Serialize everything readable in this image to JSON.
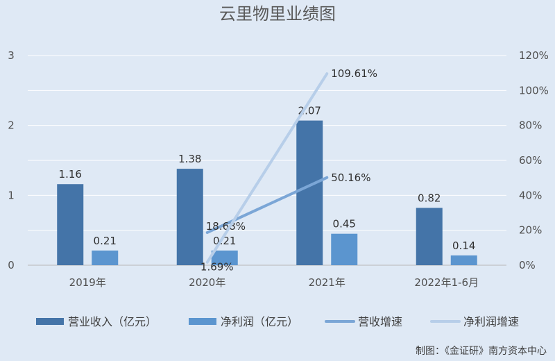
{
  "chart_data": {
    "type": "bar",
    "title": "云里物里业绩图",
    "categories": [
      "2019年",
      "2020年",
      "2021年",
      "2022年1-6月"
    ],
    "bar_series": [
      {
        "name": "营业收入（亿元）",
        "values": [
          1.16,
          1.38,
          2.07,
          0.82
        ],
        "labels": [
          "1.16",
          "1.38",
          "2.07",
          "0.82"
        ],
        "color": "#4474a8"
      },
      {
        "name": "净利润（亿元）",
        "values": [
          0.21,
          0.21,
          0.45,
          0.14
        ],
        "labels": [
          "0.21",
          "0.21",
          "0.45",
          "0.14"
        ],
        "color": "#5b95cf"
      }
    ],
    "line_series": [
      {
        "name": "营收增速",
        "values": [
          18.68,
          50.16
        ],
        "labels": [
          "18.68%",
          "50.16%"
        ],
        "categories": [
          "2020年",
          "2021年"
        ],
        "color": "#7ba6d6"
      },
      {
        "name": "净利润增速",
        "values": [
          1.69,
          109.61
        ],
        "labels": [
          "1.69%",
          "109.61%"
        ],
        "categories": [
          "2020年",
          "2021年"
        ],
        "color": "#b7cee9"
      }
    ],
    "y_left": {
      "min": 0,
      "max": 3,
      "ticks": [
        "0",
        "1",
        "2",
        "3"
      ]
    },
    "y_right": {
      "min": 0,
      "max": 120,
      "ticks": [
        "0%",
        "20%",
        "40%",
        "60%",
        "80%",
        "100%",
        "120%"
      ]
    },
    "grid": true,
    "legend_position": "bottom"
  },
  "source_note": "制图：《金证研》南方资本中心"
}
